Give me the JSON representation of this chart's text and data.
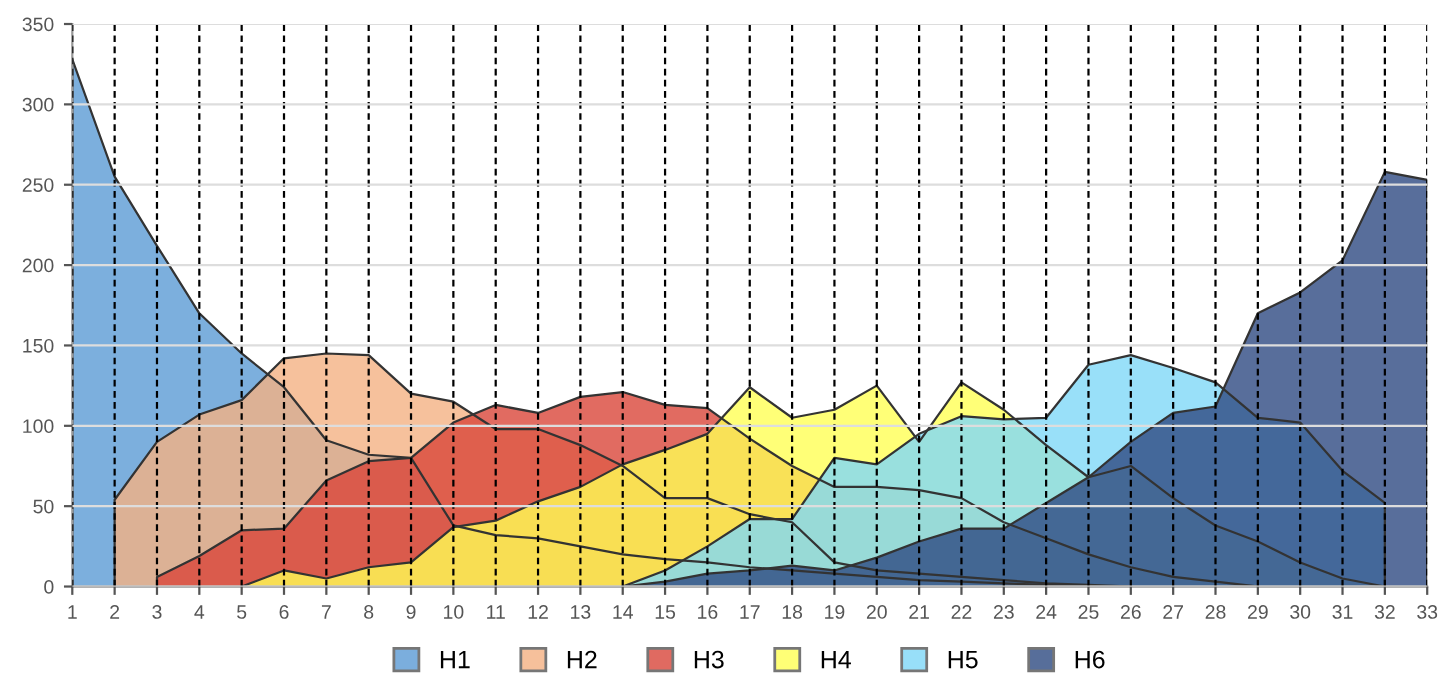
{
  "chart_data": {
    "type": "area",
    "x": [
      1,
      2,
      3,
      4,
      5,
      6,
      7,
      8,
      9,
      10,
      11,
      12,
      13,
      14,
      15,
      16,
      17,
      18,
      19,
      20,
      21,
      22,
      23,
      24,
      25,
      26,
      27,
      28,
      29,
      30,
      31,
      32,
      33
    ],
    "xlim": [
      1,
      33
    ],
    "xticks": [
      1,
      2,
      3,
      4,
      5,
      6,
      7,
      8,
      9,
      10,
      11,
      12,
      13,
      14,
      15,
      16,
      17,
      18,
      19,
      20,
      21,
      22,
      23,
      24,
      25,
      26,
      27,
      28,
      29,
      30,
      31,
      32,
      33
    ],
    "ylim": [
      0,
      350
    ],
    "yticks": [
      0,
      50,
      100,
      150,
      200,
      250,
      300,
      350
    ],
    "grid": true,
    "legend": "bottom",
    "series": [
      {
        "name": "H1",
        "color": "#5b9bd5",
        "values": [
          328,
          255,
          212,
          170,
          145,
          124,
          91,
          82,
          80,
          38,
          32,
          30,
          25,
          20,
          17,
          15,
          12,
          10,
          8,
          6,
          4,
          3,
          2,
          1,
          0,
          null,
          null,
          null,
          null,
          null,
          null,
          null,
          null
        ]
      },
      {
        "name": "H2",
        "color": "#f4b183",
        "values": [
          null,
          54,
          90,
          107,
          116,
          142,
          145,
          144,
          120,
          115,
          98,
          98,
          88,
          75,
          55,
          55,
          45,
          40,
          15,
          10,
          8,
          6,
          4,
          2,
          1,
          0,
          null,
          null,
          null,
          null,
          null,
          null,
          null
        ]
      },
      {
        "name": "H3",
        "color": "#d9463a",
        "values": [
          null,
          null,
          6,
          19,
          35,
          36,
          66,
          78,
          80,
          102,
          113,
          108,
          118,
          121,
          113,
          111,
          92,
          75,
          62,
          62,
          60,
          55,
          40,
          30,
          20,
          12,
          6,
          3,
          0,
          null,
          null,
          null,
          null
        ]
      },
      {
        "name": "H4",
        "color": "#ffff55",
        "values": [
          null,
          null,
          null,
          null,
          0,
          10,
          5,
          12,
          15,
          37,
          41,
          53,
          62,
          76,
          85,
          95,
          124,
          105,
          110,
          125,
          90,
          127,
          110,
          88,
          68,
          75,
          55,
          38,
          28,
          15,
          5,
          0,
          null
        ]
      },
      {
        "name": "H5",
        "color": "#7fd8f8",
        "values": [
          null,
          null,
          null,
          null,
          null,
          null,
          null,
          null,
          null,
          null,
          null,
          null,
          null,
          0,
          10,
          25,
          42,
          42,
          80,
          76,
          95,
          106,
          104,
          105,
          138,
          144,
          136,
          127,
          105,
          102,
          72,
          52,
          null
        ]
      },
      {
        "name": "H6",
        "color": "#2e4a82",
        "values": [
          null,
          null,
          null,
          null,
          null,
          null,
          null,
          null,
          null,
          null,
          null,
          null,
          null,
          0,
          3,
          8,
          10,
          13,
          10,
          18,
          28,
          36,
          36,
          52,
          68,
          90,
          108,
          112,
          170,
          183,
          203,
          258,
          253
        ]
      }
    ]
  }
}
